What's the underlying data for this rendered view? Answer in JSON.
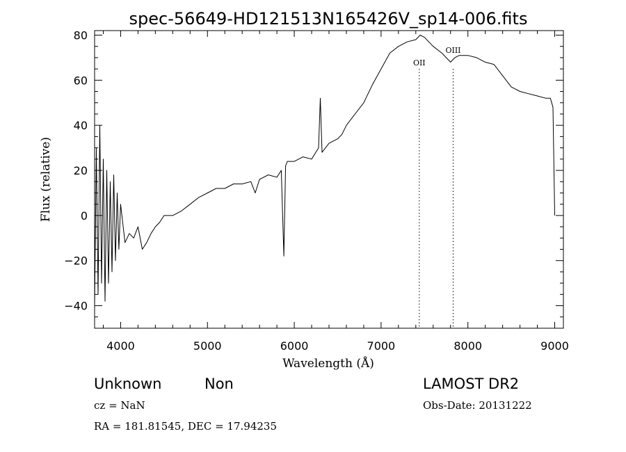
{
  "chart_data": {
    "type": "line",
    "title": "spec-56649-HD121513N165426V_sp14-006.fits",
    "xlabel": "Wavelength (Å)",
    "ylabel": "Flux (relative)",
    "xlim": [
      3700,
      9100
    ],
    "ylim": [
      -50,
      82
    ],
    "xticks": [
      4000,
      5000,
      6000,
      7000,
      8000,
      9000
    ],
    "yticks": [
      -40,
      -20,
      0,
      20,
      40,
      60,
      80
    ],
    "grid": false,
    "series": [
      {
        "x": [
          3700,
          3720,
          3740,
          3760,
          3780,
          3800,
          3820,
          3840,
          3860,
          3880,
          3900,
          3920,
          3940,
          3960,
          3980,
          4000,
          4050,
          4100,
          4150,
          4200,
          4250,
          4300,
          4350,
          4400,
          4450,
          4500,
          4600,
          4700,
          4800,
          4900,
          5000,
          5100,
          5200,
          5300,
          5400,
          5500,
          5550,
          5600,
          5700,
          5800,
          5850,
          5880,
          5900,
          5920,
          6000,
          6100,
          6200,
          6280,
          6300,
          6320,
          6400,
          6500,
          6550,
          6600,
          6700,
          6800,
          6900,
          7000,
          7100,
          7200,
          7300,
          7400,
          7450,
          7500,
          7550,
          7600,
          7700,
          7800,
          7850,
          7900,
          8000,
          8100,
          8200,
          8300,
          8400,
          8500,
          8600,
          8700,
          8800,
          8900,
          8950,
          8980,
          9000
        ],
        "y": [
          -40,
          30,
          -35,
          40,
          -30,
          25,
          -38,
          20,
          -30,
          15,
          -25,
          18,
          -20,
          10,
          -15,
          5,
          -12,
          -8,
          -10,
          -5,
          -15,
          -12,
          -8,
          -5,
          -3,
          0,
          0,
          2,
          5,
          8,
          10,
          12,
          12,
          14,
          14,
          15,
          10,
          16,
          18,
          17,
          20,
          -18,
          22,
          24,
          24,
          26,
          25,
          30,
          52,
          28,
          32,
          34,
          36,
          40,
          45,
          50,
          58,
          65,
          72,
          75,
          77,
          78,
          80,
          79,
          77,
          75,
          72,
          68,
          70,
          71,
          71,
          70,
          68,
          67,
          62,
          57,
          55,
          54,
          53,
          52,
          52,
          48,
          0
        ]
      }
    ],
    "annotations": [
      {
        "label": "OII",
        "x": 7440
      },
      {
        "label": "OIII",
        "x": 7830
      }
    ]
  },
  "info": {
    "type_label": "Unknown",
    "subtype_label": "Non",
    "redshift": "cz = NaN",
    "coords": "RA = 181.81545, DEC =  17.94235",
    "survey": "LAMOST DR2",
    "obs_date": "Obs-Date: 20131222"
  }
}
